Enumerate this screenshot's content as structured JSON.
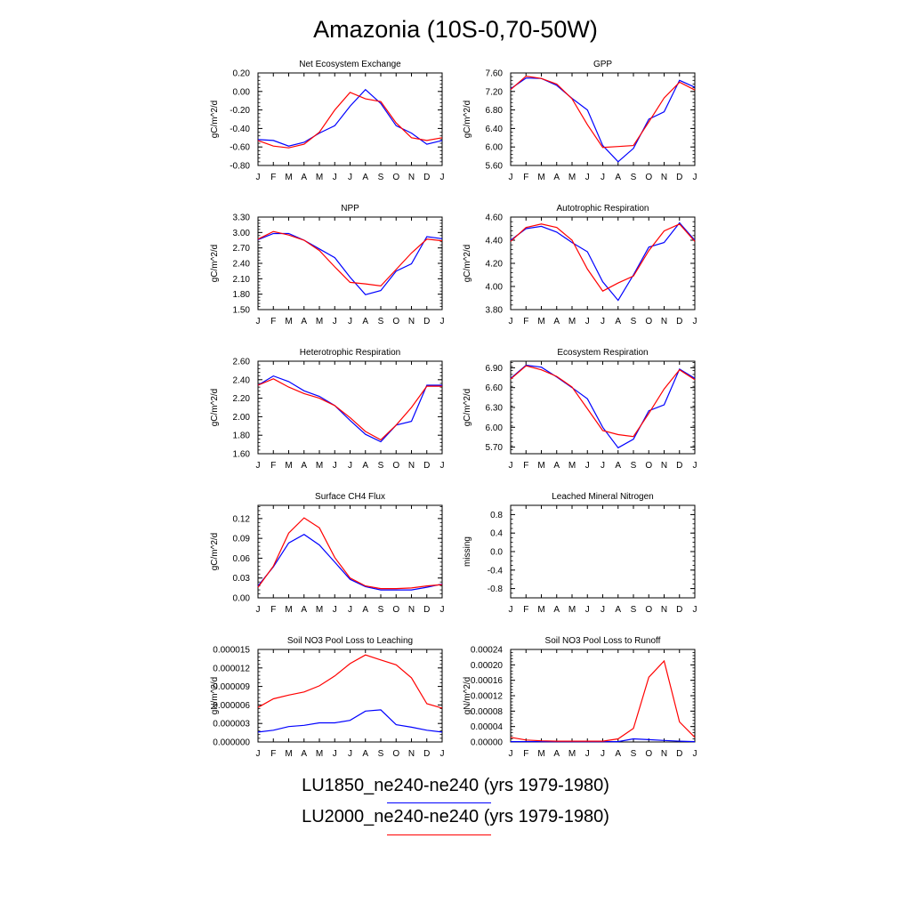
{
  "title": "Amazonia (10S-0,70-50W)",
  "months": [
    "J",
    "F",
    "M",
    "A",
    "M",
    "J",
    "J",
    "A",
    "S",
    "O",
    "N",
    "D",
    "J"
  ],
  "legend": [
    {
      "label": "LU1850_ne240-ne240 (yrs 1979-1980)",
      "color": "#0000ff"
    },
    {
      "label": "LU2000_ne240-ne240 (yrs 1979-1980)",
      "color": "#ff0000"
    }
  ],
  "chart_data": [
    {
      "type": "line",
      "title": "Net Ecosystem Exchange",
      "ylabel": "gC/m^2/d",
      "ylim": [
        -0.8,
        0.2
      ],
      "yticks": [
        -0.8,
        -0.6,
        -0.4,
        -0.2,
        0.0,
        0.2
      ],
      "ytick_labels": [
        "-0.80",
        "-0.60",
        "-0.40",
        "-0.20",
        "0.00",
        "0.20"
      ],
      "series": [
        {
          "color": "#0000ff",
          "values": [
            -0.52,
            -0.53,
            -0.59,
            -0.55,
            -0.45,
            -0.37,
            -0.16,
            0.02,
            -0.13,
            -0.37,
            -0.45,
            -0.57,
            -0.53
          ]
        },
        {
          "color": "#ff0000",
          "values": [
            -0.53,
            -0.59,
            -0.61,
            -0.57,
            -0.44,
            -0.2,
            -0.01,
            -0.08,
            -0.11,
            -0.34,
            -0.5,
            -0.53,
            -0.5
          ]
        }
      ]
    },
    {
      "type": "line",
      "title": "GPP",
      "ylabel": "gC/m^2/d",
      "ylim": [
        5.6,
        7.6
      ],
      "yticks": [
        5.6,
        6.0,
        6.4,
        6.8,
        7.2,
        7.6
      ],
      "ytick_labels": [
        "5.60",
        "6.00",
        "6.40",
        "6.80",
        "7.20",
        "7.60"
      ],
      "series": [
        {
          "color": "#0000ff",
          "values": [
            7.26,
            7.49,
            7.48,
            7.33,
            7.05,
            6.8,
            6.03,
            5.68,
            5.97,
            6.6,
            6.76,
            7.44,
            7.29
          ]
        },
        {
          "color": "#ff0000",
          "values": [
            7.24,
            7.53,
            7.48,
            7.36,
            7.04,
            6.48,
            5.99,
            6.01,
            6.03,
            6.54,
            7.06,
            7.4,
            7.23
          ]
        }
      ]
    },
    {
      "type": "line",
      "title": "NPP",
      "ylabel": "gC/m^2/d",
      "ylim": [
        1.5,
        3.3
      ],
      "yticks": [
        1.5,
        1.8,
        2.1,
        2.4,
        2.7,
        3.0,
        3.3
      ],
      "ytick_labels": [
        "1.50",
        "1.80",
        "2.10",
        "2.40",
        "2.70",
        "3.00",
        "3.30"
      ],
      "series": [
        {
          "color": "#0000ff",
          "values": [
            2.86,
            2.98,
            2.98,
            2.85,
            2.68,
            2.51,
            2.13,
            1.79,
            1.87,
            2.25,
            2.39,
            2.92,
            2.88
          ]
        },
        {
          "color": "#ff0000",
          "values": [
            2.87,
            3.02,
            2.95,
            2.85,
            2.65,
            2.33,
            2.03,
            2.0,
            1.96,
            2.28,
            2.6,
            2.87,
            2.84
          ]
        }
      ]
    },
    {
      "type": "line",
      "title": "Autotrophic Respiration",
      "ylabel": "gC/m^2/d",
      "ylim": [
        3.8,
        4.6
      ],
      "yticks": [
        3.8,
        4.0,
        4.2,
        4.4,
        4.6
      ],
      "ytick_labels": [
        "3.80",
        "4.00",
        "4.20",
        "4.40",
        "4.60"
      ],
      "series": [
        {
          "color": "#0000ff",
          "values": [
            4.4,
            4.5,
            4.52,
            4.47,
            4.38,
            4.3,
            4.04,
            3.88,
            4.1,
            4.34,
            4.38,
            4.55,
            4.4
          ]
        },
        {
          "color": "#ff0000",
          "values": [
            4.39,
            4.51,
            4.54,
            4.51,
            4.4,
            4.15,
            3.96,
            4.03,
            4.09,
            4.31,
            4.48,
            4.54,
            4.39
          ]
        }
      ]
    },
    {
      "type": "line",
      "title": "Heterotrophic Respiration",
      "ylabel": "gC/m^2/d",
      "ylim": [
        1.6,
        2.6
      ],
      "yticks": [
        1.6,
        1.8,
        2.0,
        2.2,
        2.4,
        2.6
      ],
      "ytick_labels": [
        "1.60",
        "1.80",
        "2.00",
        "2.20",
        "2.40",
        "2.60"
      ],
      "series": [
        {
          "color": "#0000ff",
          "values": [
            2.34,
            2.44,
            2.38,
            2.28,
            2.22,
            2.12,
            1.96,
            1.81,
            1.73,
            1.91,
            1.95,
            2.34,
            2.34
          ]
        },
        {
          "color": "#ff0000",
          "values": [
            2.34,
            2.41,
            2.32,
            2.25,
            2.2,
            2.12,
            1.99,
            1.84,
            1.75,
            1.91,
            2.1,
            2.33,
            2.33
          ]
        }
      ]
    },
    {
      "type": "line",
      "title": "Ecosystem Respiration",
      "ylabel": "gC/m^2/d",
      "ylim": [
        5.6,
        7.0
      ],
      "yticks": [
        5.7,
        6.0,
        6.3,
        6.6,
        6.9
      ],
      "ytick_labels": [
        "5.70",
        "6.00",
        "6.30",
        "6.60",
        "6.90"
      ],
      "series": [
        {
          "color": "#0000ff",
          "values": [
            6.74,
            6.94,
            6.91,
            6.76,
            6.6,
            6.43,
            6.0,
            5.69,
            5.82,
            6.25,
            6.34,
            6.88,
            6.74
          ]
        },
        {
          "color": "#ff0000",
          "values": [
            6.73,
            6.93,
            6.87,
            6.77,
            6.61,
            6.28,
            5.95,
            5.89,
            5.86,
            6.21,
            6.58,
            6.87,
            6.72
          ]
        }
      ]
    },
    {
      "type": "line",
      "title": "Surface CH4 Flux",
      "ylabel": "gC/m^2/d",
      "ylim": [
        0.0,
        0.14
      ],
      "yticks": [
        0.0,
        0.03,
        0.06,
        0.09,
        0.12
      ],
      "ytick_labels": [
        "0.00",
        "0.03",
        "0.06",
        "0.09",
        "0.12"
      ],
      "series": [
        {
          "color": "#0000ff",
          "values": [
            0.018,
            0.047,
            0.083,
            0.096,
            0.08,
            0.054,
            0.028,
            0.017,
            0.012,
            0.012,
            0.012,
            0.016,
            0.021
          ]
        },
        {
          "color": "#ff0000",
          "values": [
            0.016,
            0.048,
            0.098,
            0.121,
            0.106,
            0.061,
            0.03,
            0.018,
            0.014,
            0.014,
            0.015,
            0.018,
            0.02
          ]
        }
      ]
    },
    {
      "type": "line",
      "title": "Leached Mineral Nitrogen",
      "ylabel": "missing",
      "ylim": [
        -1.0,
        1.0
      ],
      "yticks": [
        -0.8,
        -0.4,
        0.0,
        0.4,
        0.8
      ],
      "ytick_labels": [
        "-0.8",
        "-0.4",
        "0.0",
        "0.4",
        "0.8"
      ],
      "minor_step": 0.1,
      "series": []
    },
    {
      "type": "line",
      "title": "Soil NO3 Pool Loss to Leaching",
      "ylabel": "gN/m^2/d",
      "ylim": [
        0.0,
        1.5e-05
      ],
      "yticks": [
        0.0,
        3e-06,
        6e-06,
        9e-06,
        1.2e-05,
        1.5e-05
      ],
      "ytick_labels": [
        "0.000000",
        "0.000003",
        "0.000006",
        "0.000009",
        "0.000012",
        "0.000015"
      ],
      "series": [
        {
          "color": "#0000ff",
          "values": [
            1.6e-06,
            1.9e-06,
            2.5e-06,
            2.7e-06,
            3.1e-06,
            3.1e-06,
            3.5e-06,
            5e-06,
            5.2e-06,
            2.8e-06,
            2.4e-06,
            1.9e-06,
            1.6e-06
          ]
        },
        {
          "color": "#ff0000",
          "values": [
            5.6e-06,
            7e-06,
            7.6e-06,
            8.1e-06,
            9.1e-06,
            1.07e-05,
            1.27e-05,
            1.41e-05,
            1.33e-05,
            1.25e-05,
            1.04e-05,
            6.2e-06,
            5.5e-06
          ]
        }
      ]
    },
    {
      "type": "line",
      "title": "Soil NO3 Pool Loss to Runoff",
      "ylabel": "gN/m^2/d",
      "ylim": [
        0.0,
        0.00024
      ],
      "yticks": [
        0.0,
        4e-05,
        8e-05,
        0.00012,
        0.00016,
        0.0002,
        0.00024
      ],
      "ytick_labels": [
        "0.00000",
        "0.00004",
        "0.00008",
        "0.00012",
        "0.00016",
        "0.00020",
        "0.00024"
      ],
      "series": [
        {
          "color": "#0000ff",
          "values": [
            1e-06,
            1e-06,
            1e-06,
            1e-06,
            1e-06,
            1e-06,
            1e-06,
            1e-06,
            8e-06,
            6e-06,
            4e-06,
            2e-06,
            1e-06
          ]
        },
        {
          "color": "#ff0000",
          "values": [
            1.2e-05,
            5e-06,
            3e-06,
            2e-06,
            2e-06,
            2e-06,
            2e-06,
            8e-06,
            3.5e-05,
            0.000168,
            0.00021,
            5.2e-05,
            1.2e-05
          ]
        }
      ]
    }
  ]
}
